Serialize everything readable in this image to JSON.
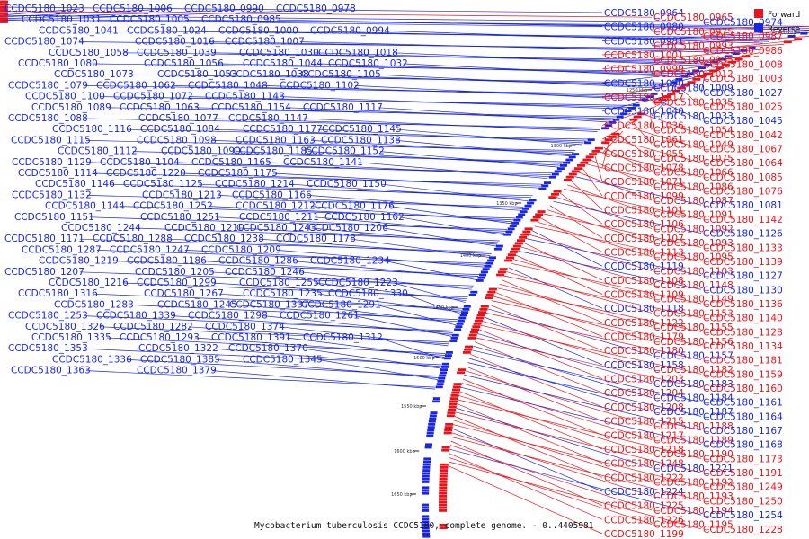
{
  "caption": "Mycobacterium tuberculosis CCDC5180, complete genome. - 0..4405981",
  "legend": [
    {
      "label": "Forward",
      "color": "#e8141b"
    },
    {
      "label": "Reverse",
      "color": "#1a26e6"
    }
  ],
  "colors": {
    "forward": "#e8141b",
    "reverse": "#1a26e6",
    "backbone": "#555555"
  },
  "ticks": [
    "1200 kbp",
    "1250 kbp",
    "1300 kbp",
    "1350 kbp",
    "1400 kbp",
    "1450 kbp",
    "1500 kbp",
    "1550 kbp",
    "1600 kbp",
    "1650 kbp"
  ],
  "left_labels": [
    "CCDC5180_1023",
    "CCDC5180_1006",
    "CCDC5180_0990",
    "CCDC5180_0978",
    "CCDC5180_1031",
    "CCDC5180_1005",
    "CCDC5180_0985",
    "CCDC5180_1041",
    "CCDC5180_1024",
    "CCDC5180_1000",
    "CCDC5180_0994",
    "CCDC5180_1074",
    "CCDC5180_1016",
    "CCDC5180_1007",
    "CCDC5180_1058",
    "CCDC5180_1039",
    "CCDC5180_1030",
    "CCDC5180_1018",
    "CCDC5180_1080",
    "CCDC5180_1056",
    "CCDC5180_1044",
    "CCDC5180_1032",
    "CCDC5180_1073",
    "CCDC5180_1053",
    "CCDC5180_1038",
    "CCDC5180_1105",
    "CCDC5180_1079",
    "CCDC5180_1062",
    "CCDC5180_1048",
    "CCDC5180_1102",
    "CCDC5180_1100",
    "CCDC5180_1072",
    "CCDC5180_1143",
    "CCDC5180_1089",
    "CCDC5180_1063",
    "CCDC5180_1154",
    "CCDC5180_1117",
    "CCDC5180_1088",
    "CCDC5180_1077",
    "CCDC5180_1147",
    "CCDC5180_1116",
    "CCDC5180_1084",
    "CCDC5180_1177",
    "CCDC5180_1145",
    "CCDC5180_1115",
    "CCDC5180_1098",
    "CCDC5180_1163",
    "CCDC5180_1138",
    "CCDC5180_1112",
    "CCDC5180_1090",
    "CCDC5180_1185",
    "CCDC5180_1152",
    "CCDC5180_1129",
    "CCDC5180_1104",
    "CCDC5180_1165",
    "CCDC5180_1141",
    "CCDC5180_1114",
    "CCDC5180_1220",
    "CCDC5180_1175",
    "CCDC5180_1146",
    "CCDC5180_1125",
    "CCDC5180_1214",
    "CCDC5180_1150",
    "CCDC5180_1132",
    "CCDC5180_1213",
    "CCDC5180_1166",
    "CCDC5180_1144",
    "CCDC5180_1252",
    "CCDC5180_1212",
    "CCDC5180_1176",
    "CCDC5180_1151",
    "CCDC5180_1251",
    "CCDC5180_1211",
    "CCDC5180_1162",
    "CCDC5180_1244",
    "CCDC5180_1210",
    "CCDC5180_1243",
    "CCDC5180_1206",
    "CCDC5180_1171",
    "CCDC5180_1288",
    "CCDC5180_1238",
    "CCDC5180_1178",
    "CCDC5180_1287",
    "CCDC5180_1247",
    "CCDC5180_1209",
    "CCDC5180_1219",
    "CCDC5180_1186",
    "CCDC5180_1286",
    "CCDC5180_1234",
    "CCDC5180_1207",
    "CCDC5180_1205",
    "CCDC5180_1246",
    "CCDC5180_1216",
    "CCDC5180_1299",
    "CCDC5180_1255",
    "CCDC5180_1223",
    "CCDC5180_1316",
    "CCDC5180_1267",
    "CCDC5180_1235",
    "CCDC5180_1330",
    "CCDC5180_1283",
    "CCDC5180_1245",
    "CCDC5180_1337",
    "CCDC5180_1291",
    "CCDC5180_1253",
    "CCDC5180_1339",
    "CCDC5180_1298",
    "CCDC5180_1261",
    "CCDC5180_1326",
    "CCDC5180_1282",
    "CCDC5180_1374",
    "CCDC5180_1335",
    "CCDC5180_1293",
    "CCDC5180_1391",
    "CCDC5180_1312",
    "CCDC5180_1353",
    "CCDC5180_1322",
    "CCDC5180_1370",
    "CCDC5180_1336",
    "CCDC5180_1385",
    "CCDC5180_1345",
    "CCDC5180_1363",
    "CCDC5180_1379"
  ],
  "right_labels": [
    {
      "text": "CCDC5180_0964",
      "strand": "reverse"
    },
    {
      "text": "CCDC5180_0965",
      "strand": "forward"
    },
    {
      "text": "CCDC5180_0974",
      "strand": "reverse"
    },
    {
      "text": "CCDC5180_0980",
      "strand": "reverse"
    },
    {
      "text": "CCDC5180_0975",
      "strand": "forward"
    },
    {
      "text": "CCDC5180_0987",
      "strand": "forward"
    },
    {
      "text": "CCDC5180_0981",
      "strand": "reverse"
    },
    {
      "text": "CCDC5180_0993",
      "strand": "forward"
    },
    {
      "text": "CCDC5180_0986",
      "strand": "forward"
    },
    {
      "text": "CCDC5180_1001",
      "strand": "forward"
    },
    {
      "text": "CCDC5180_0995",
      "strand": "forward"
    },
    {
      "text": "CCDC5180_1008",
      "strand": "forward"
    },
    {
      "text": "CCDC5180_0999",
      "strand": "forward"
    },
    {
      "text": "CCDC5180_1012",
      "strand": "forward"
    },
    {
      "text": "CCDC5180_1003",
      "strand": "forward"
    },
    {
      "text": "CCDC5180_1020",
      "strand": "reverse"
    },
    {
      "text": "CCDC5180_1009",
      "strand": "reverse"
    },
    {
      "text": "CCDC5180_1027",
      "strand": "reverse"
    },
    {
      "text": "CCDC5180_1017",
      "strand": "forward"
    },
    {
      "text": "CCDC5180_1035",
      "strand": "forward"
    },
    {
      "text": "CCDC5180_1025",
      "strand": "forward"
    },
    {
      "text": "CCDC5180_1040",
      "strand": "reverse"
    },
    {
      "text": "CCDC5180_1033",
      "strand": "reverse"
    },
    {
      "text": "CCDC5180_1045",
      "strand": "reverse"
    },
    {
      "text": "CCDC5180_1036",
      "strand": "forward"
    },
    {
      "text": "CCDC5180_1054",
      "strand": "forward"
    },
    {
      "text": "CCDC5180_1042",
      "strand": "forward"
    },
    {
      "text": "CCDC5180_1061",
      "strand": "forward"
    },
    {
      "text": "CCDC5180_1049",
      "strand": "forward"
    },
    {
      "text": "CCDC5180_1067",
      "strand": "forward"
    },
    {
      "text": "CCDC5180_1055",
      "strand": "forward"
    },
    {
      "text": "CCDC5180_1075",
      "strand": "forward"
    },
    {
      "text": "CCDC5180_1064",
      "strand": "forward"
    },
    {
      "text": "CCDC5180_1078",
      "strand": "forward"
    },
    {
      "text": "CCDC5180_1066",
      "strand": "forward"
    },
    {
      "text": "CCDC5180_1085",
      "strand": "forward"
    },
    {
      "text": "CCDC5180_1071",
      "strand": "forward"
    },
    {
      "text": "CCDC5180_1086",
      "strand": "forward"
    },
    {
      "text": "CCDC5180_1076",
      "strand": "forward"
    },
    {
      "text": "CCDC5180_1099",
      "strand": "forward"
    },
    {
      "text": "CCDC5180_1087",
      "strand": "forward"
    },
    {
      "text": "CCDC5180_1081",
      "strand": "reverse"
    },
    {
      "text": "CCDC5180_1101",
      "strand": "forward"
    },
    {
      "text": "CCDC5180_1091",
      "strand": "forward"
    },
    {
      "text": "CCDC5180_1142",
      "strand": "forward"
    },
    {
      "text": "CCDC5180_1106",
      "strand": "forward"
    },
    {
      "text": "CCDC5180_1092",
      "strand": "forward"
    },
    {
      "text": "CCDC5180_1126",
      "strand": "reverse"
    },
    {
      "text": "CCDC5180_1107",
      "strand": "forward"
    },
    {
      "text": "CCDC5180_1093",
      "strand": "forward"
    },
    {
      "text": "CCDC5180_1133",
      "strand": "forward"
    },
    {
      "text": "CCDC5180_1113",
      "strand": "forward"
    },
    {
      "text": "CCDC5180_1095",
      "strand": "forward"
    },
    {
      "text": "CCDC5180_1139",
      "strand": "forward"
    },
    {
      "text": "CCDC5180_1119",
      "strand": "reverse"
    },
    {
      "text": "CCDC5180_1103",
      "strand": "forward"
    },
    {
      "text": "CCDC5180_1127",
      "strand": "reverse"
    },
    {
      "text": "CCDC5180_1108",
      "strand": "forward"
    },
    {
      "text": "CCDC5180_1148",
      "strand": "forward"
    },
    {
      "text": "CCDC5180_1130",
      "strand": "reverse"
    },
    {
      "text": "CCDC5180_1109",
      "strand": "forward"
    },
    {
      "text": "CCDC5180_1149",
      "strand": "forward"
    },
    {
      "text": "CCDC5180_1136",
      "strand": "forward"
    },
    {
      "text": "CCDC5180_1118",
      "strand": "reverse"
    },
    {
      "text": "CCDC5180_1153",
      "strand": "forward"
    },
    {
      "text": "CCDC5180_1140",
      "strand": "forward"
    },
    {
      "text": "CCDC5180_1122",
      "strand": "forward"
    },
    {
      "text": "CCDC5180_1155",
      "strand": "forward"
    },
    {
      "text": "CCDC5180_1128",
      "strand": "forward"
    },
    {
      "text": "CCDC5180_1179",
      "strand": "forward"
    },
    {
      "text": "CCDC5180_1156",
      "strand": "forward"
    },
    {
      "text": "CCDC5180_1134",
      "strand": "forward"
    },
    {
      "text": "CCDC5180_1180",
      "strand": "forward"
    },
    {
      "text": "CCDC5180_1157",
      "strand": "reverse"
    },
    {
      "text": "CCDC5180_1181",
      "strand": "forward"
    },
    {
      "text": "CCDC5180_1158",
      "strand": "reverse"
    },
    {
      "text": "CCDC5180_1182",
      "strand": "forward"
    },
    {
      "text": "CCDC5180_1159",
      "strand": "forward"
    },
    {
      "text": "CCDC5180_1203",
      "strand": "forward"
    },
    {
      "text": "CCDC5180_1183",
      "strand": "reverse"
    },
    {
      "text": "CCDC5180_1160",
      "strand": "forward"
    },
    {
      "text": "CCDC5180_1204",
      "strand": "forward"
    },
    {
      "text": "CCDC5180_1184",
      "strand": "reverse"
    },
    {
      "text": "CCDC5180_1161",
      "strand": "reverse"
    },
    {
      "text": "CCDC5180_1208",
      "strand": "forward"
    },
    {
      "text": "CCDC5180_1187",
      "strand": "reverse"
    },
    {
      "text": "CCDC5180_1164",
      "strand": "reverse"
    },
    {
      "text": "CCDC5180_1215",
      "strand": "forward"
    },
    {
      "text": "CCDC5180_1188",
      "strand": "forward"
    },
    {
      "text": "CCDC5180_1167",
      "strand": "reverse"
    },
    {
      "text": "CCDC5180_1217",
      "strand": "forward"
    },
    {
      "text": "CCDC5180_1189",
      "strand": "forward"
    },
    {
      "text": "CCDC5180_1168",
      "strand": "reverse"
    },
    {
      "text": "CCDC5180_1218",
      "strand": "forward"
    },
    {
      "text": "CCDC5180_1190",
      "strand": "forward"
    },
    {
      "text": "CCDC5180_1173",
      "strand": "forward"
    },
    {
      "text": "CCDC5180_1248",
      "strand": "forward"
    },
    {
      "text": "CCDC5180_1221",
      "strand": "reverse"
    },
    {
      "text": "CCDC5180_1191",
      "strand": "forward"
    },
    {
      "text": "CCDC5180_1222",
      "strand": "forward"
    },
    {
      "text": "CCDC5180_1192",
      "strand": "forward"
    },
    {
      "text": "CCDC5180_1249",
      "strand": "forward"
    },
    {
      "text": "CCDC5180_1224",
      "strand": "reverse"
    },
    {
      "text": "CCDC5180_1193",
      "strand": "forward"
    },
    {
      "text": "CCDC5180_1250",
      "strand": "forward"
    },
    {
      "text": "CCDC5180_1225",
      "strand": "forward"
    },
    {
      "text": "CCDC5180_1194",
      "strand": "forward"
    },
    {
      "text": "CCDC5180_1254",
      "strand": "reverse"
    },
    {
      "text": "CCDC5180_1226",
      "strand": "forward"
    },
    {
      "text": "CCDC5180_1195",
      "strand": "forward"
    },
    {
      "text": "CCDC5180_1228",
      "strand": "forward"
    },
    {
      "text": "CCDC5180_1199",
      "strand": "forward"
    }
  ]
}
